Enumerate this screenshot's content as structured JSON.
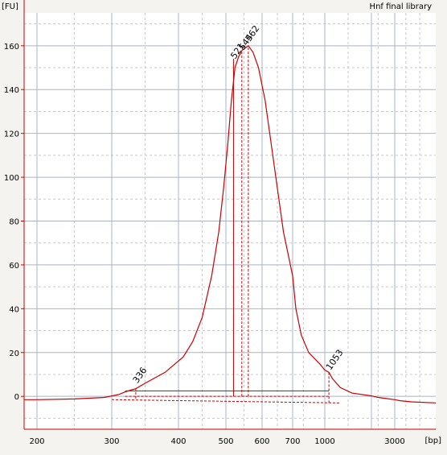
{
  "chart_data": {
    "type": "line",
    "title": "Hnf final library",
    "ylabel": "[FU]",
    "xlabel": "[bp]",
    "ylim": [
      -15,
      175
    ],
    "y_ticks": [
      0,
      20,
      40,
      60,
      80,
      100,
      120,
      140,
      160
    ],
    "x_scale": "electropherogram",
    "x_ticks": [
      {
        "label": "200",
        "bp": 200
      },
      {
        "label": "300",
        "bp": 300
      },
      {
        "label": "400",
        "bp": 400
      },
      {
        "label": "500",
        "bp": 500
      },
      {
        "label": "600",
        "bp": 600
      },
      {
        "label": "700",
        "bp": 700
      },
      {
        "label": "1000",
        "bp": 1000
      },
      {
        "label": "3000",
        "bp": 3000
      }
    ],
    "grid": true,
    "series": [
      {
        "color": "#cc0000",
        "points": [
          [
            170,
            -1.5
          ],
          [
            200,
            -1.5
          ],
          [
            250,
            -1.2
          ],
          [
            290,
            -0.5
          ],
          [
            310,
            0.8
          ],
          [
            320,
            2
          ],
          [
            330,
            3
          ],
          [
            336,
            3.5
          ],
          [
            350,
            6
          ],
          [
            380,
            11
          ],
          [
            410,
            18
          ],
          [
            430,
            25
          ],
          [
            450,
            36
          ],
          [
            470,
            55
          ],
          [
            485,
            75
          ],
          [
            495,
            95
          ],
          [
            505,
            115
          ],
          [
            515,
            135
          ],
          [
            525,
            150
          ],
          [
            535,
            155
          ],
          [
            545,
            158
          ],
          [
            562,
            160
          ],
          [
            575,
            157
          ],
          [
            590,
            150
          ],
          [
            610,
            135
          ],
          [
            630,
            115
          ],
          [
            650,
            95
          ],
          [
            670,
            75
          ],
          [
            700,
            55
          ],
          [
            730,
            40
          ],
          [
            780,
            28
          ],
          [
            850,
            20
          ],
          [
            950,
            15
          ],
          [
            1000,
            12
          ],
          [
            1053,
            11
          ],
          [
            1100,
            8
          ],
          [
            1200,
            4
          ],
          [
            1350,
            1.5
          ],
          [
            1600,
            0.2
          ],
          [
            2000,
            -0.5
          ],
          [
            2500,
            -1
          ],
          [
            3000,
            -1.5
          ],
          [
            4000,
            -2
          ],
          [
            6000,
            -2.5
          ],
          [
            10380,
            -3
          ]
        ]
      }
    ],
    "peak_labels": [
      {
        "text": "336",
        "bp": 336,
        "fu": 5
      },
      {
        "text": "521",
        "bp": 521,
        "fu": 153
      },
      {
        "text": "544",
        "bp": 544,
        "fu": 157
      },
      {
        "text": "562",
        "bp": 562,
        "fu": 161
      },
      {
        "text": "1053",
        "bp": 1053,
        "fu": 11
      }
    ],
    "baseline_markers": [
      {
        "kind": "region",
        "from_bp": 320,
        "to_bp": 1053,
        "color": "#006600"
      }
    ]
  }
}
